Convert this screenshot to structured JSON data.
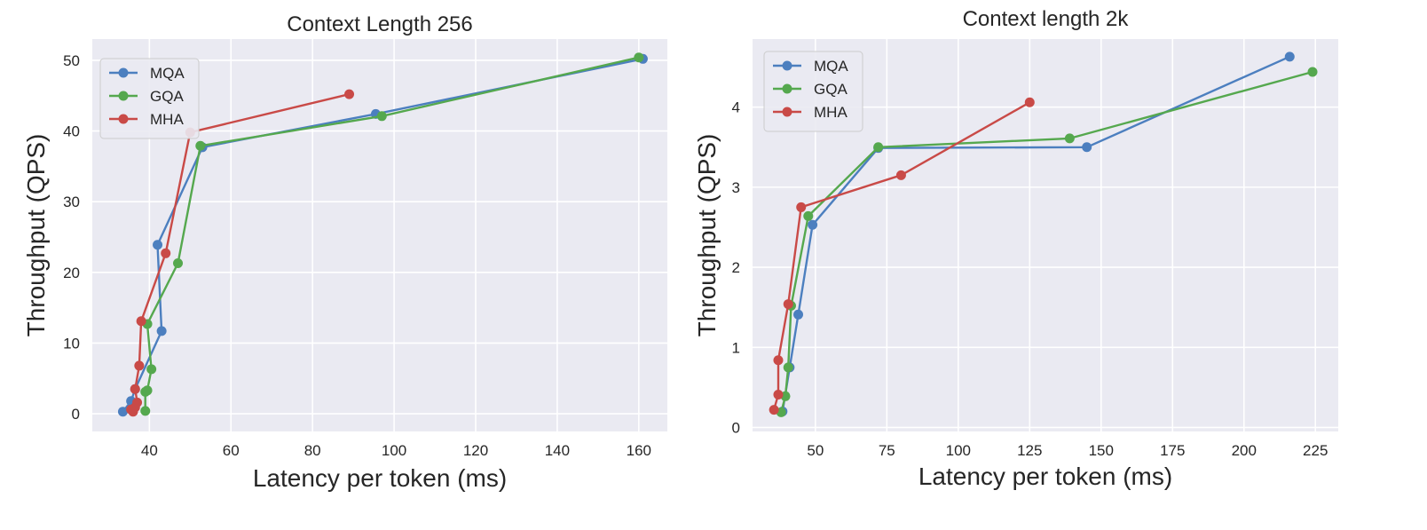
{
  "chart_data": [
    {
      "type": "line",
      "title": "Context Length 256",
      "xlabel": "Latency per token (ms)",
      "ylabel": "Throughput (QPS)",
      "xlim": [
        26,
        167
      ],
      "ylim": [
        -2.5,
        53
      ],
      "xticks": [
        40,
        60,
        80,
        100,
        120,
        140,
        160
      ],
      "yticks": [
        0,
        10,
        20,
        30,
        40,
        50
      ],
      "grid": true,
      "legend_position": "top-left",
      "series": [
        {
          "name": "MQA",
          "color": "#4c7fbf",
          "x": [
            33.5,
            35.5,
            36.5,
            43.0,
            42.0,
            53.0,
            95.5,
            161.0
          ],
          "y": [
            0.3,
            1.8,
            3.5,
            11.7,
            23.9,
            37.7,
            42.4,
            50.2
          ]
        },
        {
          "name": "GQA",
          "color": "#55a84e",
          "x": [
            39.0,
            39.0,
            39.5,
            40.5,
            39.5,
            47.0,
            52.5,
            97.0,
            160.0
          ],
          "y": [
            0.4,
            3.1,
            3.3,
            6.3,
            12.7,
            21.3,
            37.9,
            42.1,
            50.4
          ]
        },
        {
          "name": "MHA",
          "color": "#c94a47",
          "x": [
            36.0,
            35.5,
            36.5,
            37.0,
            36.5,
            37.5,
            38.0,
            44.0,
            50.0,
            89.0
          ],
          "y": [
            0.3,
            0.6,
            0.9,
            1.6,
            3.5,
            6.8,
            13.1,
            22.7,
            39.8,
            45.2
          ]
        }
      ]
    },
    {
      "type": "line",
      "title": "Context length 2k",
      "xlabel": "Latency per token (ms)",
      "ylabel": "Throughput (QPS)",
      "xlim": [
        28,
        233
      ],
      "ylim": [
        -0.05,
        4.85
      ],
      "xticks": [
        50,
        75,
        100,
        125,
        150,
        175,
        200,
        225
      ],
      "yticks": [
        0,
        1,
        2,
        3,
        4
      ],
      "grid": true,
      "legend_position": "top-left",
      "series": [
        {
          "name": "MQA",
          "color": "#4c7fbf",
          "x": [
            38.5,
            41.0,
            44.0,
            49.0,
            72.0,
            145.0,
            216.0
          ],
          "y": [
            0.2,
            0.75,
            1.41,
            2.53,
            3.49,
            3.5,
            4.63
          ]
        },
        {
          "name": "GQA",
          "color": "#55a84e",
          "x": [
            38.0,
            39.5,
            40.5,
            41.5,
            47.5,
            72.0,
            139.0,
            224.0
          ],
          "y": [
            0.19,
            0.39,
            0.75,
            1.52,
            2.64,
            3.5,
            3.61,
            4.44
          ]
        },
        {
          "name": "MHA",
          "color": "#c94a47",
          "x": [
            35.5,
            37.0,
            37.0,
            40.5,
            45.0,
            80.0,
            125.0
          ],
          "y": [
            0.22,
            0.41,
            0.84,
            1.54,
            2.75,
            3.15,
            4.06
          ]
        }
      ]
    }
  ]
}
